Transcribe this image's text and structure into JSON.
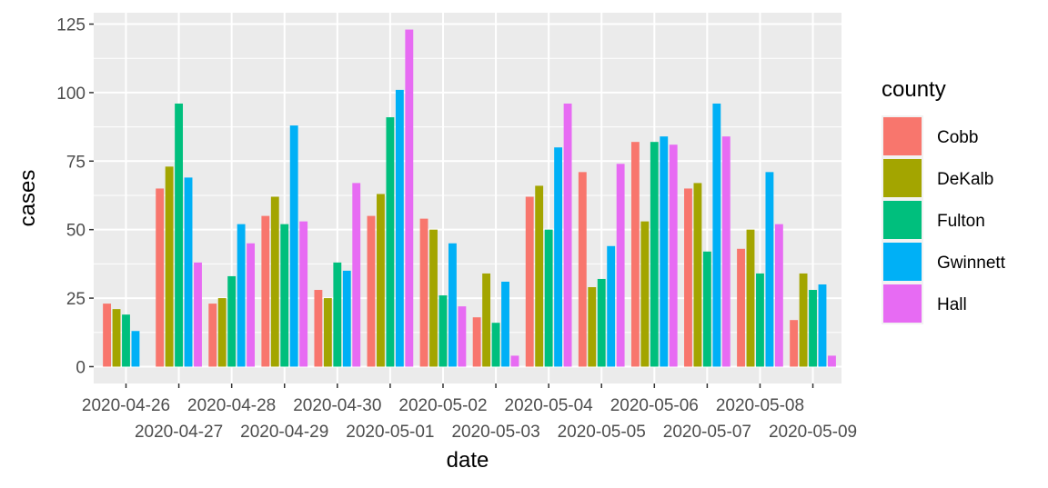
{
  "chart_data": {
    "type": "bar",
    "xlabel": "date",
    "ylabel": "cases",
    "ylim": [
      -6.15,
      129.15
    ],
    "yticks": [
      0,
      25,
      50,
      75,
      100,
      125
    ],
    "grid": true,
    "legend": {
      "title": "county",
      "placement": "right"
    },
    "categories": [
      "2020-04-26",
      "2020-04-27",
      "2020-04-28",
      "2020-04-29",
      "2020-04-30",
      "2020-05-01",
      "2020-05-02",
      "2020-05-03",
      "2020-05-04",
      "2020-05-05",
      "2020-05-06",
      "2020-05-07",
      "2020-05-08",
      "2020-05-09"
    ],
    "series": [
      {
        "name": "Cobb",
        "color": "#F8766D",
        "values": [
          23,
          65,
          23,
          55,
          28,
          55,
          54,
          18,
          62,
          71,
          82,
          65,
          43,
          17
        ]
      },
      {
        "name": "DeKalb",
        "color": "#A3A500",
        "values": [
          21,
          73,
          25,
          62,
          25,
          63,
          50,
          34,
          66,
          29,
          53,
          67,
          50,
          34
        ]
      },
      {
        "name": "Fulton",
        "color": "#00BF7D",
        "values": [
          19,
          96,
          33,
          52,
          38,
          91,
          26,
          16,
          50,
          32,
          82,
          42,
          34,
          28
        ]
      },
      {
        "name": "Gwinnett",
        "color": "#00B0F6",
        "values": [
          13,
          69,
          52,
          88,
          35,
          101,
          45,
          31,
          80,
          44,
          84,
          96,
          71,
          30
        ]
      },
      {
        "name": "Hall",
        "color": "#E76BF3",
        "values": [
          0,
          38,
          45,
          53,
          67,
          123,
          22,
          4,
          96,
          74,
          81,
          84,
          52,
          4
        ]
      }
    ]
  }
}
